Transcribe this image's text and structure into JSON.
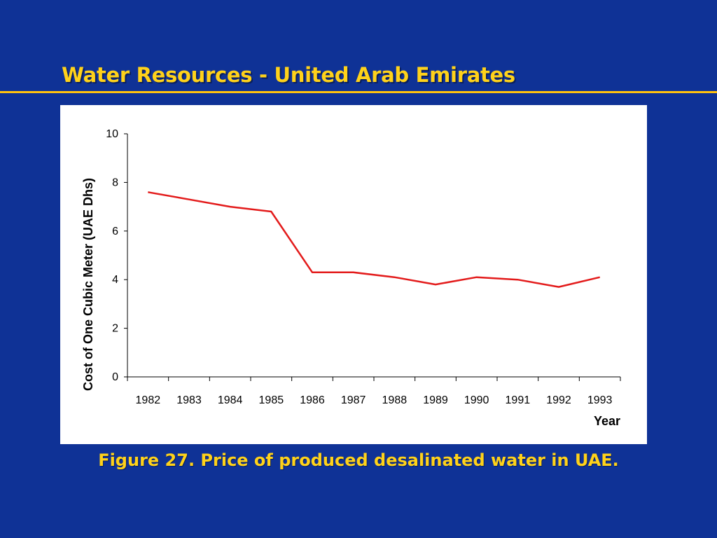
{
  "slide": {
    "title": "Water Resources - United Arab Emirates",
    "caption": "Figure 27. Price of produced desalinated water in UAE."
  },
  "colors": {
    "background": "#0f3296",
    "title": "#ffd21a",
    "rule": "#ffc20e",
    "series_line": "#e31b1b"
  },
  "chart_data": {
    "type": "line",
    "title": "",
    "xlabel": "Year",
    "ylabel": "Cost of One Cubic Meter (UAE Dhs)",
    "x": [
      "1982",
      "1983",
      "1984",
      "1985",
      "1986",
      "1987",
      "1988",
      "1989",
      "1990",
      "1991",
      "1992",
      "1993"
    ],
    "series": [
      {
        "values": [
          7.6,
          7.3,
          7.0,
          6.8,
          4.3,
          4.3,
          4.1,
          3.8,
          4.1,
          4.0,
          3.7,
          4.1
        ]
      }
    ],
    "ylim": [
      0,
      10
    ],
    "yticks": [
      0,
      2,
      4,
      6,
      8,
      10
    ],
    "grid": false,
    "legend": "none"
  }
}
